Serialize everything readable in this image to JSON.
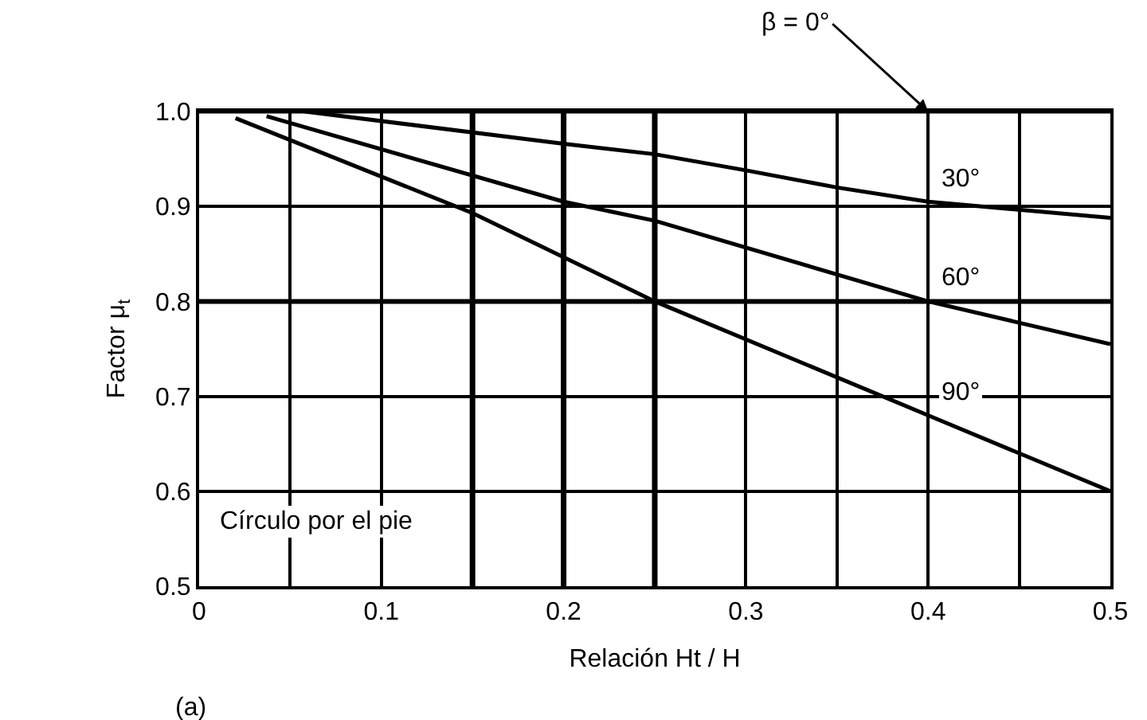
{
  "chart_data": {
    "type": "line",
    "xlabel": "Relación Ht / H",
    "ylabel": "Factor μ$_{t}$",
    "xlim": [
      0,
      0.5
    ],
    "ylim": [
      0.5,
      1.0
    ],
    "xticks": [
      {
        "value": 0,
        "label": "0"
      },
      0.1,
      0.2,
      0.3,
      0.4,
      0.5
    ],
    "yticks": [
      0.5,
      0.6,
      0.7,
      0.8,
      0.9,
      {
        "value": 1.0,
        "label": "1.0"
      }
    ],
    "grid": true,
    "legend": false,
    "marker": "none",
    "line_style": "solid",
    "series": [
      {
        "name": "β = 0°",
        "color": "#000000",
        "x": [
          0,
          0.5
        ],
        "values": [
          1.0,
          1.0
        ]
      },
      {
        "name": "30°",
        "color": "#000000",
        "x": [
          0.058,
          0.2,
          0.25,
          0.3,
          0.35,
          0.4,
          0.5
        ],
        "values": [
          1.0,
          0.966,
          0.955,
          0.938,
          0.92,
          0.905,
          0.888
        ]
      },
      {
        "name": "60°",
        "color": "#000000",
        "x": [
          0.037,
          0.2,
          0.25,
          0.4,
          0.5
        ],
        "values": [
          0.995,
          0.905,
          0.885,
          0.8,
          0.755
        ]
      },
      {
        "name": "90°",
        "color": "#000000",
        "x": [
          0.02,
          0.15,
          0.25,
          0.4,
          0.5
        ],
        "values": [
          0.993,
          0.893,
          0.8,
          0.68,
          0.6
        ]
      }
    ],
    "ref_lines": [
      {
        "axis": "x",
        "value": 0.15,
        "color": "#000000"
      },
      {
        "axis": "x",
        "value": 0.2,
        "color": "#000000"
      },
      {
        "axis": "x",
        "value": 0.25,
        "color": "#000000"
      },
      {
        "axis": "y",
        "value": 0.8,
        "color": "#000000"
      }
    ],
    "annotations": [
      "Círculo por el pie",
      "(a)"
    ]
  }
}
